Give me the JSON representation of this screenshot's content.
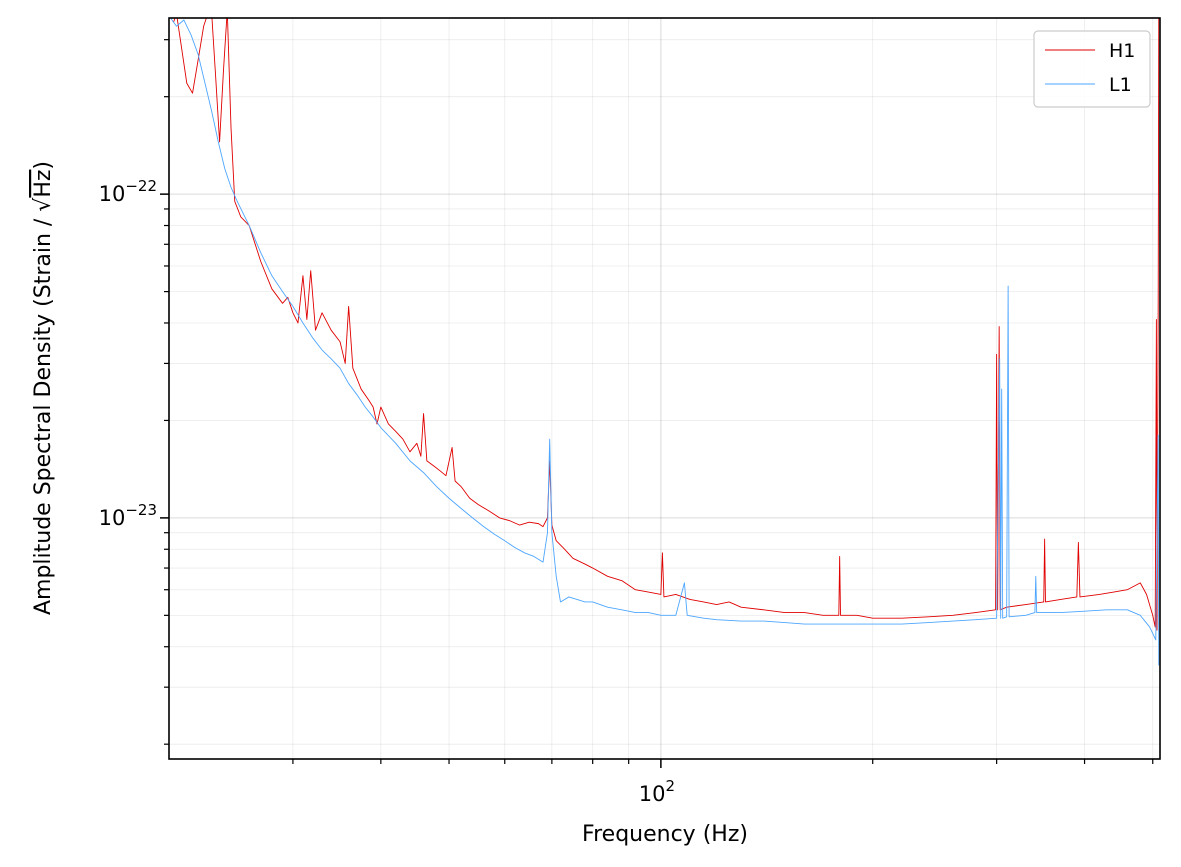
{
  "chart_data": {
    "type": "line",
    "title": "",
    "xlabel": "Frequency (Hz)",
    "ylabel_parts": {
      "prefix": "Amplitude Spectral Density (Strain / ",
      "radical": "√",
      "radicand": "Hz",
      "suffix": ")"
    },
    "x_scale": "log",
    "y_scale": "log",
    "xlim": [
      20,
      512
    ],
    "ylim": [
      1.8e-24,
      3.5e-22
    ],
    "x_major_ticks": [
      {
        "value": 100,
        "base": "10",
        "exp": "2"
      }
    ],
    "y_major_ticks": [
      {
        "value": 1e-23,
        "base": "10",
        "exp": "−23"
      },
      {
        "value": 1e-22,
        "base": "10",
        "exp": "−22"
      }
    ],
    "x_minor_ticks": [
      30,
      40,
      50,
      60,
      70,
      80,
      90,
      200,
      300,
      400,
      500
    ],
    "y_minor_ticks": [
      2e-24,
      3e-24,
      4e-24,
      5e-24,
      6e-24,
      7e-24,
      8e-24,
      9e-24,
      2e-23,
      3e-23,
      4e-23,
      5e-23,
      6e-23,
      7e-23,
      8e-23,
      9e-23,
      2e-22,
      3e-22
    ],
    "grid": true,
    "legend": "top-right",
    "series": [
      {
        "name": "H1",
        "color": "#e00000",
        "points": [
          [
            20.3,
            3.4e-22
          ],
          [
            20.5,
            3.6e-22
          ],
          [
            21.2,
            2.2e-22
          ],
          [
            21.6,
            2.05e-22
          ],
          [
            22.0,
            2.6e-22
          ],
          [
            22.4,
            3.3e-22
          ],
          [
            22.7,
            3.6e-22
          ],
          [
            23.0,
            3.6e-22
          ],
          [
            23.3,
            2.3e-22
          ],
          [
            23.6,
            1.45e-22
          ],
          [
            23.9,
            2.4e-22
          ],
          [
            24.2,
            3.7e-22
          ],
          [
            24.5,
            1.6e-22
          ],
          [
            24.8,
            9.5e-23
          ],
          [
            25.3,
            8.5e-23
          ],
          [
            26.0,
            8e-23
          ],
          [
            27.0,
            6.2e-23
          ],
          [
            28.0,
            5.1e-23
          ],
          [
            29.0,
            4.6e-23
          ],
          [
            29.5,
            4.8e-23
          ],
          [
            30.0,
            4.3e-23
          ],
          [
            30.5,
            4e-23
          ],
          [
            31.0,
            5.6e-23
          ],
          [
            31.4,
            4.1e-23
          ],
          [
            31.8,
            5.8e-23
          ],
          [
            32.3,
            3.8e-23
          ],
          [
            33.0,
            4.3e-23
          ],
          [
            34.0,
            3.8e-23
          ],
          [
            35.0,
            3.5e-23
          ],
          [
            35.6,
            3e-23
          ],
          [
            36.0,
            4.5e-23
          ],
          [
            36.5,
            2.9e-23
          ],
          [
            37.5,
            2.5e-23
          ],
          [
            38.5,
            2.3e-23
          ],
          [
            39.0,
            2.2e-23
          ],
          [
            39.5,
            1.95e-23
          ],
          [
            40.0,
            2.2e-23
          ],
          [
            41.0,
            1.95e-23
          ],
          [
            42.0,
            1.85e-23
          ],
          [
            43.0,
            1.75e-23
          ],
          [
            44.0,
            1.6e-23
          ],
          [
            45.0,
            1.7e-23
          ],
          [
            45.6,
            1.55e-23
          ],
          [
            46.0,
            2.1e-23
          ],
          [
            46.5,
            1.5e-23
          ],
          [
            47.5,
            1.45e-23
          ],
          [
            48.5,
            1.4e-23
          ],
          [
            49.5,
            1.35e-23
          ],
          [
            50.5,
            1.65e-23
          ],
          [
            51.0,
            1.3e-23
          ],
          [
            52.0,
            1.25e-23
          ],
          [
            53.5,
            1.15e-23
          ],
          [
            55.0,
            1.1e-23
          ],
          [
            57.0,
            1.05e-23
          ],
          [
            59.0,
            1e-23
          ],
          [
            61.0,
            9.8e-24
          ],
          [
            63.0,
            9.5e-24
          ],
          [
            65.0,
            9.7e-24
          ],
          [
            67.0,
            9.6e-24
          ],
          [
            68.0,
            9.4e-24
          ],
          [
            69.0,
            1e-23
          ],
          [
            69.5,
            1.5e-23
          ],
          [
            70.0,
            9.5e-24
          ],
          [
            71.0,
            8.5e-24
          ],
          [
            73.0,
            8e-24
          ],
          [
            75.0,
            7.5e-24
          ],
          [
            78.0,
            7.2e-24
          ],
          [
            80.0,
            7e-24
          ],
          [
            84.0,
            6.6e-24
          ],
          [
            88.0,
            6.4e-24
          ],
          [
            92.0,
            6e-24
          ],
          [
            96.0,
            5.9e-24
          ],
          [
            100.0,
            5.8e-24
          ],
          [
            100.5,
            7.8e-24
          ],
          [
            101.0,
            5.7e-24
          ],
          [
            105.0,
            5.8e-24
          ],
          [
            110.0,
            5.6e-24
          ],
          [
            115.0,
            5.5e-24
          ],
          [
            120.0,
            5.4e-24
          ],
          [
            125.0,
            5.5e-24
          ],
          [
            130.0,
            5.3e-24
          ],
          [
            140.0,
            5.2e-24
          ],
          [
            150.0,
            5.1e-24
          ],
          [
            160.0,
            5.1e-24
          ],
          [
            170.0,
            5e-24
          ],
          [
            179.0,
            5e-24
          ],
          [
            179.5,
            7.6e-24
          ],
          [
            180.0,
            5e-24
          ],
          [
            190.0,
            5e-24
          ],
          [
            200.0,
            4.9e-24
          ],
          [
            220.0,
            4.9e-24
          ],
          [
            240.0,
            4.95e-24
          ],
          [
            260.0,
            5e-24
          ],
          [
            280.0,
            5.1e-24
          ],
          [
            299.0,
            5.2e-24
          ],
          [
            300.0,
            3.2e-23
          ],
          [
            301.0,
            5.2e-24
          ],
          [
            302.5,
            3.9e-23
          ],
          [
            303.5,
            5.2e-24
          ],
          [
            310.0,
            5.3e-24
          ],
          [
            330.0,
            5.4e-24
          ],
          [
            350.0,
            5.5e-24
          ],
          [
            351.0,
            8.6e-24
          ],
          [
            352.0,
            5.5e-24
          ],
          [
            370.0,
            5.6e-24
          ],
          [
            390.0,
            5.7e-24
          ],
          [
            392.0,
            8.4e-24
          ],
          [
            394.0,
            5.7e-24
          ],
          [
            420.0,
            5.8e-24
          ],
          [
            440.0,
            5.9e-24
          ],
          [
            460.0,
            6e-24
          ],
          [
            480.0,
            6.3e-24
          ],
          [
            490.0,
            5.8e-24
          ],
          [
            500.0,
            5e-24
          ],
          [
            504.0,
            4.6e-24
          ],
          [
            506.0,
            4.1e-23
          ],
          [
            507.0,
            4.5e-24
          ],
          [
            509.0,
            4.7e-23
          ],
          [
            510.0,
            3.8e-22
          ]
        ]
      },
      {
        "name": "L1",
        "color": "#4da6ff",
        "points": [
          [
            20.1,
            3.5e-22
          ],
          [
            20.5,
            3.3e-22
          ],
          [
            21.0,
            3.45e-22
          ],
          [
            21.5,
            3.1e-22
          ],
          [
            22.0,
            2.7e-22
          ],
          [
            22.5,
            2.2e-22
          ],
          [
            23.0,
            1.8e-22
          ],
          [
            23.5,
            1.45e-22
          ],
          [
            24.0,
            1.2e-22
          ],
          [
            24.5,
            1.05e-22
          ],
          [
            25.0,
            9.5e-23
          ],
          [
            26.0,
            8e-23
          ],
          [
            27.0,
            6.6e-23
          ],
          [
            28.0,
            5.6e-23
          ],
          [
            29.0,
            5e-23
          ],
          [
            30.0,
            4.5e-23
          ],
          [
            31.0,
            4e-23
          ],
          [
            32.0,
            3.6e-23
          ],
          [
            33.0,
            3.3e-23
          ],
          [
            34.0,
            3.1e-23
          ],
          [
            35.0,
            2.9e-23
          ],
          [
            36.0,
            2.6e-23
          ],
          [
            37.0,
            2.4e-23
          ],
          [
            38.0,
            2.2e-23
          ],
          [
            39.0,
            2.05e-23
          ],
          [
            40.0,
            1.9e-23
          ],
          [
            42.0,
            1.7e-23
          ],
          [
            44.0,
            1.5e-23
          ],
          [
            46.0,
            1.38e-23
          ],
          [
            48.0,
            1.25e-23
          ],
          [
            50.0,
            1.15e-23
          ],
          [
            52.0,
            1.07e-23
          ],
          [
            54.0,
            1e-23
          ],
          [
            56.0,
            9.4e-24
          ],
          [
            58.0,
            8.9e-24
          ],
          [
            60.0,
            8.5e-24
          ],
          [
            62.0,
            8.1e-24
          ],
          [
            64.0,
            7.8e-24
          ],
          [
            66.0,
            7.6e-24
          ],
          [
            68.0,
            7.3e-24
          ],
          [
            69.0,
            9e-24
          ],
          [
            69.5,
            1.75e-23
          ],
          [
            70.0,
            9e-24
          ],
          [
            71.0,
            6.6e-24
          ],
          [
            72.0,
            5.5e-24
          ],
          [
            74.0,
            5.7e-24
          ],
          [
            76.0,
            5.6e-24
          ],
          [
            78.0,
            5.5e-24
          ],
          [
            80.0,
            5.5e-24
          ],
          [
            84.0,
            5.3e-24
          ],
          [
            88.0,
            5.2e-24
          ],
          [
            92.0,
            5.1e-24
          ],
          [
            96.0,
            5.1e-24
          ],
          [
            100.0,
            5e-24
          ],
          [
            105.0,
            5e-24
          ],
          [
            108.0,
            6.3e-24
          ],
          [
            109.0,
            5e-24
          ],
          [
            115.0,
            4.9e-24
          ],
          [
            120.0,
            4.85e-24
          ],
          [
            130.0,
            4.8e-24
          ],
          [
            140.0,
            4.8e-24
          ],
          [
            150.0,
            4.75e-24
          ],
          [
            160.0,
            4.7e-24
          ],
          [
            180.0,
            4.7e-24
          ],
          [
            200.0,
            4.7e-24
          ],
          [
            220.0,
            4.7e-24
          ],
          [
            240.0,
            4.75e-24
          ],
          [
            260.0,
            4.8e-24
          ],
          [
            280.0,
            4.85e-24
          ],
          [
            300.0,
            4.9e-24
          ],
          [
            303.0,
            3.1e-23
          ],
          [
            304.0,
            4.9e-24
          ],
          [
            305.0,
            2.5e-23
          ],
          [
            306.0,
            4.9e-24
          ],
          [
            310.0,
            4.95e-24
          ],
          [
            311.5,
            5.2e-23
          ],
          [
            312.5,
            4.95e-24
          ],
          [
            330.0,
            5e-24
          ],
          [
            340.0,
            5.1e-24
          ],
          [
            341.0,
            6.6e-24
          ],
          [
            342.0,
            5.1e-24
          ],
          [
            370.0,
            5.1e-24
          ],
          [
            400.0,
            5.15e-24
          ],
          [
            430.0,
            5.2e-24
          ],
          [
            460.0,
            5.2e-24
          ],
          [
            480.0,
            5e-24
          ],
          [
            495.0,
            4.6e-24
          ],
          [
            505.0,
            4.2e-24
          ],
          [
            509.0,
            1.8e-23
          ],
          [
            510.0,
            3.5e-24
          ]
        ]
      }
    ]
  }
}
